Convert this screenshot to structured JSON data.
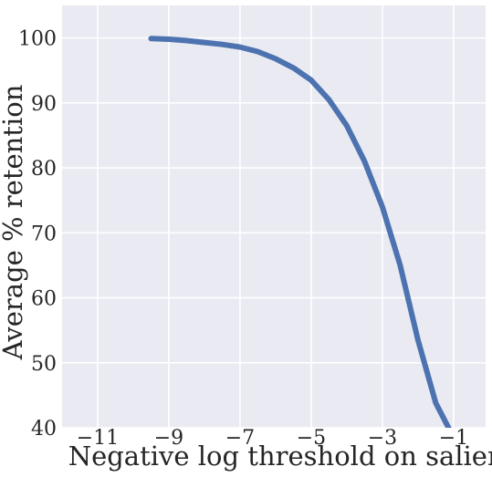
{
  "chart_data": {
    "type": "line",
    "title": "",
    "xlabel": "Negative log threshold on saliency",
    "ylabel": "Average % retention",
    "xlim": [
      -12,
      -0.1
    ],
    "ylim": [
      40,
      105
    ],
    "xticks": [
      -11,
      -9,
      -7,
      -5,
      -3,
      -1
    ],
    "yticks": [
      40,
      50,
      60,
      70,
      80,
      90,
      100
    ],
    "xtick_labels": [
      "−11",
      "−9",
      "−7",
      "−5",
      "−3",
      "−1"
    ],
    "ytick_labels": [
      "40",
      "50",
      "60",
      "70",
      "80",
      "90",
      "100"
    ],
    "grid": true,
    "legend": "none",
    "series": [
      {
        "color": "#4c72b0",
        "x": [
          -9.5,
          -9,
          -8.5,
          -8,
          -7.5,
          -7,
          -6.5,
          -6,
          -5.5,
          -5,
          -4.5,
          -4,
          -3.5,
          -3,
          -2.5,
          -2,
          -1.5,
          -1
        ],
        "y": [
          99.9,
          99.8,
          99.6,
          99.3,
          99.0,
          98.6,
          97.9,
          96.8,
          95.4,
          93.5,
          90.5,
          86.5,
          81.0,
          74.0,
          65.0,
          53.5,
          43.8,
          38.5
        ]
      }
    ],
    "background_color": "#eaeaf2",
    "grid_color": "#ffffff"
  }
}
